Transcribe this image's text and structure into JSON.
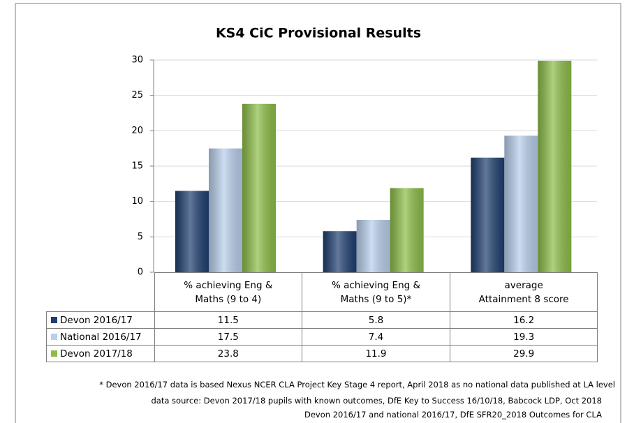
{
  "chart_data": {
    "type": "bar",
    "title": "KS4 CiC Provisional Results",
    "categories": [
      "% achieving Eng &\nMaths (9 to 4)",
      "% achieving Eng &\nMaths (9 to 5)*",
      "average\nAttainment 8 score"
    ],
    "series": [
      {
        "name": "Devon 2016/17",
        "color": "#1f3f70",
        "values": [
          11.5,
          5.8,
          16.2
        ]
      },
      {
        "name": "National 2016/17",
        "color": "#b9cfec",
        "values": [
          17.5,
          7.4,
          19.3
        ]
      },
      {
        "name": "Devon 2017/18",
        "color": "#8cbd48",
        "values": [
          23.8,
          11.9,
          29.9
        ]
      }
    ],
    "ylim": [
      0,
      30
    ],
    "yticks": [
      0,
      5,
      10,
      15,
      20,
      25,
      30
    ],
    "grid": true,
    "notes": [
      "* Devon 2016/17 data is based Nexus NCER CLA Project Key Stage 4 report, April 2018 as no national data published at LA level",
      "data source: Devon 2017/18 pupils with known outcomes, DfE Key to Success 16/10/18, Babcock LDP, Oct 2018",
      "Devon 2016/17 and national 2016/17, DfE SFR20_2018 Outcomes for CLA"
    ]
  }
}
